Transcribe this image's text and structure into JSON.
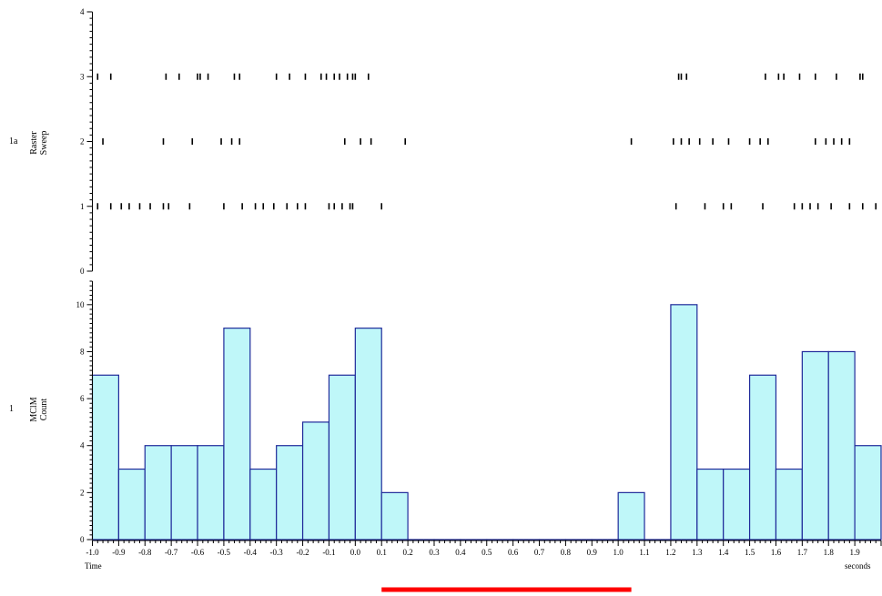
{
  "panels": {
    "raster": {
      "channel": "1a",
      "label_line1": "Raster",
      "label_line2": "Sweep"
    },
    "histogram": {
      "channel": "1",
      "label_line1": "MClM",
      "label_line2": "Count"
    }
  },
  "axis": {
    "xlabel_left": "Time",
    "xlabel_right": "seconds"
  },
  "colors": {
    "bar_fill": "#bff7f9",
    "bar_stroke": "#1f2a9a",
    "stimulus_bar": "#ff0000",
    "raster_tick": "#000000"
  },
  "chart_data": [
    {
      "type": "scatter",
      "title": "",
      "xlabel": "Time",
      "ylabel": "Raster Sweep",
      "xlim": [
        -1.0,
        2.0
      ],
      "ylim": [
        0,
        4
      ],
      "yticks": [
        0,
        1,
        2,
        3,
        4
      ],
      "series": [
        {
          "sweep": 1,
          "x": [
            -0.98,
            -0.93,
            -0.89,
            -0.86,
            -0.82,
            -0.78,
            -0.73,
            -0.71,
            -0.63,
            -0.5,
            -0.43,
            -0.38,
            -0.35,
            -0.31,
            -0.26,
            -0.22,
            -0.19,
            -0.1,
            -0.08,
            -0.05,
            -0.02,
            -0.01,
            0.1,
            1.22,
            1.33,
            1.4,
            1.43,
            1.55,
            1.67,
            1.7,
            1.73,
            1.76,
            1.81,
            1.88,
            1.93,
            1.98
          ]
        },
        {
          "sweep": 2,
          "x": [
            -0.96,
            -0.73,
            -0.62,
            -0.51,
            -0.47,
            -0.44,
            -0.04,
            0.02,
            0.06,
            0.19,
            1.05,
            1.21,
            1.24,
            1.27,
            1.31,
            1.36,
            1.42,
            1.5,
            1.54,
            1.57,
            1.75,
            1.79,
            1.82,
            1.85,
            1.88
          ]
        },
        {
          "sweep": 3,
          "x": [
            -0.98,
            -0.93,
            -0.72,
            -0.67,
            -0.6,
            -0.59,
            -0.56,
            -0.46,
            -0.44,
            -0.3,
            -0.25,
            -0.19,
            -0.13,
            -0.11,
            -0.08,
            -0.06,
            -0.03,
            -0.01,
            0.0,
            0.05,
            1.23,
            1.24,
            1.26,
            1.56,
            1.61,
            1.63,
            1.69,
            1.75,
            1.83,
            1.92,
            1.93
          ]
        }
      ]
    },
    {
      "type": "bar",
      "title": "",
      "xlabel": "Time",
      "ylabel": "MClM Count",
      "xlim": [
        -1.0,
        2.0
      ],
      "ylim": [
        0,
        11
      ],
      "yticks": [
        0,
        2,
        4,
        6,
        8,
        10
      ],
      "bin_width": 0.1,
      "bin_starts": [
        -1.0,
        -0.9,
        -0.8,
        -0.7,
        -0.6,
        -0.5,
        -0.4,
        -0.3,
        -0.2,
        -0.1,
        0.0,
        0.1,
        0.2,
        0.3,
        0.4,
        0.5,
        0.6,
        0.7,
        0.8,
        0.9,
        1.0,
        1.1,
        1.2,
        1.3,
        1.4,
        1.5,
        1.6,
        1.7,
        1.8,
        1.9
      ],
      "values": [
        7,
        3,
        4,
        4,
        4,
        9,
        3,
        4,
        5,
        7,
        9,
        2,
        0,
        0,
        0,
        0,
        0,
        0,
        0,
        0,
        2,
        0,
        10,
        3,
        3,
        7,
        3,
        8,
        8,
        4
      ],
      "xticks": [
        "-1.0",
        "-0.9",
        "-0.8",
        "-0.7",
        "-0.6",
        "-0.5",
        "-0.4",
        "-0.3",
        "-0.2",
        "-0.1",
        "0.0",
        "0.1",
        "0.2",
        "0.3",
        "0.4",
        "0.5",
        "0.6",
        "0.7",
        "0.8",
        "0.9",
        "1.0",
        "1.1",
        "1.2",
        "1.3",
        "1.4",
        "1.5",
        "1.6",
        "1.7",
        "1.8",
        "1.9"
      ],
      "stimulus": [
        0.1,
        1.05
      ]
    }
  ]
}
